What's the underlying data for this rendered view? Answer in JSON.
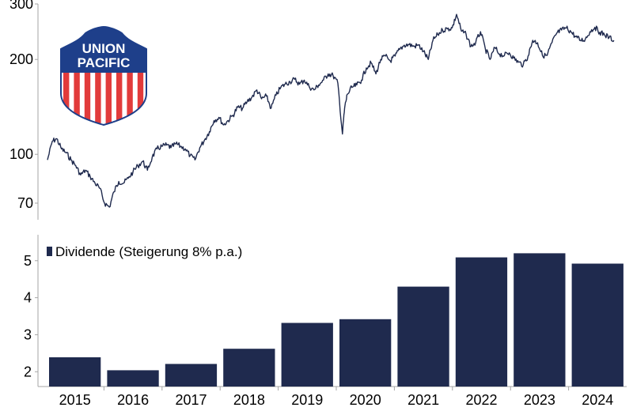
{
  "colors": {
    "series": "#1f2a4e",
    "axis": "#a6a6a6",
    "logo_blue": "#1e3f8a",
    "logo_red": "#e23b3b",
    "logo_text": "#ffffff"
  },
  "logo": {
    "line1": "UNION",
    "line2": "PACIFIC",
    "icon": "union-pacific-shield-logo"
  },
  "chart_data": [
    {
      "type": "line",
      "y_scale": "log",
      "ylim": [
        62,
        300
      ],
      "yticks": [
        70,
        100,
        200,
        300
      ],
      "xlim": [
        "2015-01-01",
        "2025-01-01"
      ],
      "grid": false,
      "series": [
        {
          "values": [
            [
              "2015-01-01",
              96
            ],
            [
              "2015-02-01",
              110
            ],
            [
              "2015-03-01",
              112
            ],
            [
              "2015-04-01",
              104
            ],
            [
              "2015-05-01",
              101
            ],
            [
              "2015-06-01",
              96
            ],
            [
              "2015-07-01",
              92
            ],
            [
              "2015-08-01",
              86
            ],
            [
              "2015-09-01",
              89
            ],
            [
              "2015-10-01",
              85
            ],
            [
              "2015-11-01",
              81
            ],
            [
              "2015-12-01",
              78
            ],
            [
              "2016-01-01",
              70
            ],
            [
              "2016-02-01",
              68
            ],
            [
              "2016-03-01",
              76
            ],
            [
              "2016-04-01",
              82
            ],
            [
              "2016-05-01",
              81
            ],
            [
              "2016-06-01",
              84
            ],
            [
              "2016-07-01",
              88
            ],
            [
              "2016-08-01",
              92
            ],
            [
              "2016-09-01",
              95
            ],
            [
              "2016-10-01",
              89
            ],
            [
              "2016-11-01",
              98
            ],
            [
              "2016-12-01",
              104
            ],
            [
              "2017-01-01",
              106
            ],
            [
              "2017-02-01",
              107
            ],
            [
              "2017-03-01",
              105
            ],
            [
              "2017-04-01",
              108
            ],
            [
              "2017-05-01",
              106
            ],
            [
              "2017-06-01",
              104
            ],
            [
              "2017-07-01",
              99
            ],
            [
              "2017-08-01",
              96
            ],
            [
              "2017-09-01",
              105
            ],
            [
              "2017-10-01",
              111
            ],
            [
              "2017-11-01",
              118
            ],
            [
              "2017-12-01",
              128
            ],
            [
              "2018-01-01",
              131
            ],
            [
              "2018-02-01",
              124
            ],
            [
              "2018-03-01",
              128
            ],
            [
              "2018-04-01",
              133
            ],
            [
              "2018-05-01",
              141
            ],
            [
              "2018-06-01",
              140
            ],
            [
              "2018-07-01",
              147
            ],
            [
              "2018-08-01",
              152
            ],
            [
              "2018-09-01",
              160
            ],
            [
              "2018-10-01",
              150
            ],
            [
              "2018-11-01",
              153
            ],
            [
              "2018-12-01",
              140
            ],
            [
              "2019-01-01",
              154
            ],
            [
              "2019-02-01",
              163
            ],
            [
              "2019-03-01",
              167
            ],
            [
              "2019-04-01",
              170
            ],
            [
              "2019-05-01",
              173
            ],
            [
              "2019-06-01",
              167
            ],
            [
              "2019-07-01",
              172
            ],
            [
              "2019-08-01",
              164
            ],
            [
              "2019-09-01",
              160
            ],
            [
              "2019-10-01",
              166
            ],
            [
              "2019-11-01",
              172
            ],
            [
              "2019-12-01",
              180
            ],
            [
              "2020-01-01",
              178
            ],
            [
              "2020-02-01",
              168
            ],
            [
              "2020-03-01",
              116
            ],
            [
              "2020-03-15",
              140
            ],
            [
              "2020-04-01",
              155
            ],
            [
              "2020-05-01",
              163
            ],
            [
              "2020-06-01",
              166
            ],
            [
              "2020-07-01",
              172
            ],
            [
              "2020-08-01",
              188
            ],
            [
              "2020-09-01",
              195
            ],
            [
              "2020-10-01",
              180
            ],
            [
              "2020-11-01",
              200
            ],
            [
              "2020-12-01",
              205
            ],
            [
              "2021-01-01",
              198
            ],
            [
              "2021-02-01",
              205
            ],
            [
              "2021-03-01",
              215
            ],
            [
              "2021-04-01",
              222
            ],
            [
              "2021-05-01",
              223
            ],
            [
              "2021-06-01",
              220
            ],
            [
              "2021-07-01",
              222
            ],
            [
              "2021-08-01",
              212
            ],
            [
              "2021-09-01",
              200
            ],
            [
              "2021-10-01",
              230
            ],
            [
              "2021-11-01",
              240
            ],
            [
              "2021-12-01",
              248
            ],
            [
              "2022-01-01",
              250
            ],
            [
              "2022-02-01",
              252
            ],
            [
              "2022-03-01",
              278
            ],
            [
              "2022-04-01",
              246
            ],
            [
              "2022-05-01",
              240
            ],
            [
              "2022-06-01",
              220
            ],
            [
              "2022-07-01",
              226
            ],
            [
              "2022-08-01",
              245
            ],
            [
              "2022-09-01",
              216
            ],
            [
              "2022-10-01",
              200
            ],
            [
              "2022-11-01",
              218
            ],
            [
              "2022-12-01",
              208
            ],
            [
              "2023-01-01",
              206
            ],
            [
              "2023-02-01",
              210
            ],
            [
              "2023-03-01",
              202
            ],
            [
              "2023-04-01",
              196
            ],
            [
              "2023-05-01",
              192
            ],
            [
              "2023-06-01",
              205
            ],
            [
              "2023-07-01",
              230
            ],
            [
              "2023-08-01",
              226
            ],
            [
              "2023-09-01",
              206
            ],
            [
              "2023-10-01",
              206
            ],
            [
              "2023-11-01",
              226
            ],
            [
              "2023-12-01",
              242
            ],
            [
              "2024-01-01",
              248
            ],
            [
              "2024-02-01",
              252
            ],
            [
              "2024-03-01",
              245
            ],
            [
              "2024-04-01",
              236
            ],
            [
              "2024-05-01",
              230
            ],
            [
              "2024-06-01",
              232
            ],
            [
              "2024-07-01",
              245
            ],
            [
              "2024-08-01",
              253
            ],
            [
              "2024-09-01",
              244
            ],
            [
              "2024-10-01",
              240
            ],
            [
              "2024-11-01",
              235
            ],
            [
              "2024-12-01",
              230
            ]
          ]
        }
      ]
    },
    {
      "type": "bar",
      "categories": [
        "2015",
        "2016",
        "2017",
        "2018",
        "2019",
        "2020",
        "2021",
        "2022",
        "2023",
        "2024"
      ],
      "values": [
        2.39,
        2.04,
        2.21,
        2.62,
        3.32,
        3.42,
        4.3,
        5.09,
        5.2,
        4.92
      ],
      "ylim": [
        1.6,
        5.7
      ],
      "yticks": [
        2,
        3,
        4,
        5
      ],
      "grid": false,
      "legend": {
        "position": "top-left",
        "entries": [
          "Dividende (Steigerung 8% p.a.)"
        ]
      }
    }
  ]
}
